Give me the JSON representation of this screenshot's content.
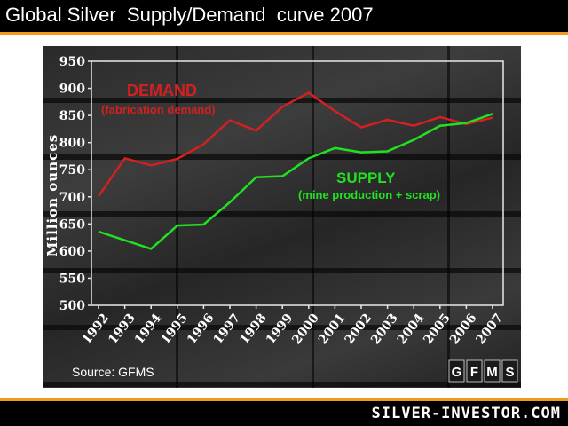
{
  "page": {
    "title": "Global Silver  Supply/Demand  curve 2007",
    "site": "SILVER-INVESTOR.COM"
  },
  "chart_data": {
    "type": "line",
    "ylabel": "Million ounces",
    "ylim": [
      500,
      950
    ],
    "yticks": [
      500,
      550,
      600,
      650,
      700,
      750,
      800,
      850,
      900,
      950
    ],
    "x": [
      "1992",
      "1993",
      "1994",
      "1995",
      "1996",
      "1997",
      "1998",
      "1999",
      "2000",
      "2001",
      "2002",
      "2003",
      "2004",
      "2005",
      "2006",
      "2007"
    ],
    "series": [
      {
        "name": "DEMAND",
        "subtitle": "(fabrication demand)",
        "color": "#d42020",
        "values": [
          701,
          771,
          758,
          770,
          797,
          841,
          822,
          866,
          892,
          858,
          828,
          842,
          831,
          847,
          834,
          846
        ]
      },
      {
        "name": "SUPPLY",
        "subtitle": "(mine production + scrap)",
        "color": "#22e022",
        "values": [
          636,
          620,
          604,
          647,
          649,
          690,
          736,
          738,
          771,
          790,
          782,
          784,
          805,
          831,
          836,
          853
        ]
      }
    ],
    "source": "Source: GFMS",
    "logo": "GFMS",
    "grid": false
  }
}
